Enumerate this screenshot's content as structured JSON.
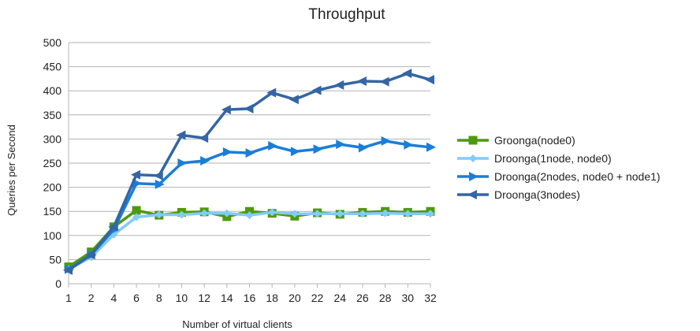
{
  "chart_data": {
    "type": "line",
    "title": "Throughput",
    "xlabel": "Number of virtual clients",
    "ylabel": "Queries per Second",
    "categories": [
      "1",
      "2",
      "4",
      "6",
      "8",
      "10",
      "12",
      "14",
      "16",
      "18",
      "20",
      "22",
      "24",
      "26",
      "28",
      "30",
      "32"
    ],
    "ylim": [
      0,
      500
    ],
    "yticks": [
      0,
      50,
      100,
      150,
      200,
      250,
      300,
      350,
      400,
      450,
      500
    ],
    "grid": true,
    "legend_position": "right",
    "series": [
      {
        "name": "Groonga(node0)",
        "color": "#4e9a06",
        "marker": "square",
        "values": [
          35,
          66,
          118,
          152,
          142,
          148,
          149,
          139,
          150,
          146,
          140,
          147,
          144,
          148,
          150,
          148,
          150
        ]
      },
      {
        "name": "Droonga(1node, node0)",
        "color": "#83caff",
        "marker": "diamond",
        "values": [
          30,
          55,
          102,
          138,
          143,
          143,
          146,
          146,
          142,
          148,
          145,
          145,
          145,
          145,
          146,
          145,
          145
        ]
      },
      {
        "name": "Droonga(2nodes, node0 + node1)",
        "color": "#1a7ed8",
        "marker": "triangle-right",
        "values": [
          30,
          60,
          112,
          208,
          206,
          250,
          255,
          273,
          271,
          286,
          274,
          279,
          289,
          282,
          296,
          288,
          283
        ]
      },
      {
        "name": "Droonga(3nodes)",
        "color": "#3465a4",
        "marker": "triangle-left",
        "values": [
          28,
          60,
          118,
          226,
          224,
          308,
          302,
          361,
          363,
          396,
          382,
          401,
          412,
          420,
          419,
          436,
          423
        ]
      }
    ]
  }
}
